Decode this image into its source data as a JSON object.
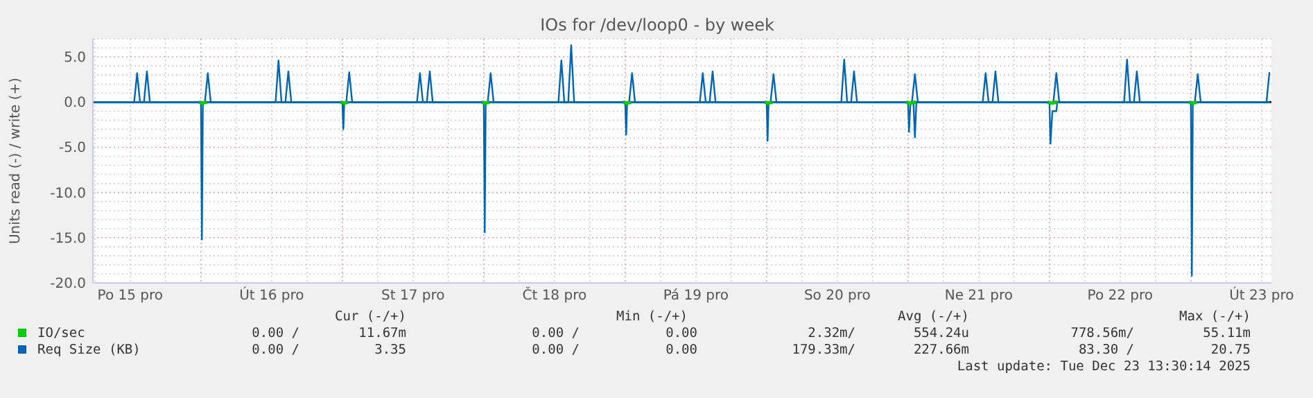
{
  "chart_data": {
    "type": "line",
    "title": "IOs for /dev/loop0 - by week",
    "ylabel": "Units read (-) / write (+)",
    "xlim": [
      "2025-12-15T05:40",
      "2025-12-23T13:40"
    ],
    "xticks": [
      {
        "value": "2025-12-15T06:00",
        "label": null
      },
      {
        "value": "2025-12-15T12:00",
        "label": "Po 15 pro"
      },
      {
        "value": "2025-12-15T18:00",
        "label": null
      },
      {
        "value": "2025-12-16T00:00",
        "label": null
      },
      {
        "value": "2025-12-16T06:00",
        "label": null
      },
      {
        "value": "2025-12-16T12:00",
        "label": "Út 16 pro"
      },
      {
        "value": "2025-12-16T18:00",
        "label": null
      },
      {
        "value": "2025-12-17T00:00",
        "label": null
      },
      {
        "value": "2025-12-17T06:00",
        "label": null
      },
      {
        "value": "2025-12-17T12:00",
        "label": "St 17 pro"
      },
      {
        "value": "2025-12-17T18:00",
        "label": null
      },
      {
        "value": "2025-12-18T00:00",
        "label": null
      },
      {
        "value": "2025-12-18T06:00",
        "label": null
      },
      {
        "value": "2025-12-18T12:00",
        "label": "Čt 18 pro"
      },
      {
        "value": "2025-12-18T18:00",
        "label": null
      },
      {
        "value": "2025-12-19T00:00",
        "label": null
      },
      {
        "value": "2025-12-19T06:00",
        "label": null
      },
      {
        "value": "2025-12-19T12:00",
        "label": "Pá 19 pro"
      },
      {
        "value": "2025-12-19T18:00",
        "label": null
      },
      {
        "value": "2025-12-20T00:00",
        "label": null
      },
      {
        "value": "2025-12-20T06:00",
        "label": null
      },
      {
        "value": "2025-12-20T12:00",
        "label": "So 20 pro"
      },
      {
        "value": "2025-12-20T18:00",
        "label": null
      },
      {
        "value": "2025-12-21T00:00",
        "label": null
      },
      {
        "value": "2025-12-21T06:00",
        "label": null
      },
      {
        "value": "2025-12-21T12:00",
        "label": "Ne 21 pro"
      },
      {
        "value": "2025-12-21T18:00",
        "label": null
      },
      {
        "value": "2025-12-22T00:00",
        "label": null
      },
      {
        "value": "2025-12-22T06:00",
        "label": null
      },
      {
        "value": "2025-12-22T12:00",
        "label": "Po 22 pro"
      },
      {
        "value": "2025-12-22T18:00",
        "label": null
      },
      {
        "value": "2025-12-23T00:00",
        "label": null
      },
      {
        "value": "2025-12-23T06:00",
        "label": null
      },
      {
        "value": "2025-12-23T12:00",
        "label": "Út 23 pro"
      }
    ],
    "ylim": [
      -20,
      7
    ],
    "yticks": [
      {
        "value": -20,
        "label": "-20.0"
      },
      {
        "value": -19,
        "label": null
      },
      {
        "value": -18,
        "label": null
      },
      {
        "value": -17,
        "label": null
      },
      {
        "value": -16,
        "label": null
      },
      {
        "value": -15,
        "label": "-15.0"
      },
      {
        "value": -14,
        "label": null
      },
      {
        "value": -13,
        "label": null
      },
      {
        "value": -12,
        "label": null
      },
      {
        "value": -11,
        "label": null
      },
      {
        "value": -10,
        "label": "-10.0"
      },
      {
        "value": -9,
        "label": null
      },
      {
        "value": -8,
        "label": null
      },
      {
        "value": -7,
        "label": null
      },
      {
        "value": -6,
        "label": null
      },
      {
        "value": -5,
        "label": "-5.0"
      },
      {
        "value": -4,
        "label": null
      },
      {
        "value": -3,
        "label": null
      },
      {
        "value": -2,
        "label": null
      },
      {
        "value": -1,
        "label": null
      },
      {
        "value": 0,
        "label": "0.0"
      },
      {
        "value": 1,
        "label": null
      },
      {
        "value": 2,
        "label": null
      },
      {
        "value": 3,
        "label": null
      },
      {
        "value": 4,
        "label": null
      },
      {
        "value": 5,
        "label": "5.0"
      },
      {
        "value": 6,
        "label": null
      },
      {
        "value": 7,
        "label": null
      }
    ],
    "grid": true,
    "legend": "bottom",
    "ref_lines": [
      {
        "axis": "y",
        "value": 0,
        "color": "#000000"
      }
    ],
    "series": [
      {
        "name": "IO/sec",
        "color": "#00cc00",
        "x": [
          "2025-12-15T23:40",
          "2025-12-16T00:20",
          "2025-12-16T01:00",
          "2025-12-16T03:00",
          "2025-12-16T23:40",
          "2025-12-17T00:20",
          "2025-12-17T01:00",
          "2025-12-17T03:00",
          "2025-12-17T23:40",
          "2025-12-18T00:20",
          "2025-12-18T01:00",
          "2025-12-18T03:00",
          "2025-12-18T23:40",
          "2025-12-19T00:20",
          "2025-12-19T01:00",
          "2025-12-19T03:00",
          "2025-12-19T23:40",
          "2025-12-20T00:20",
          "2025-12-20T01:00",
          "2025-12-20T03:00",
          "2025-12-20T23:40",
          "2025-12-21T00:20",
          "2025-12-21T01:20",
          "2025-12-21T03:00",
          "2025-12-21T23:40",
          "2025-12-22T00:20",
          "2025-12-22T01:20",
          "2025-12-22T03:00",
          "2025-12-22T23:40",
          "2025-12-23T00:20",
          "2025-12-23T01:00"
        ],
        "values": [
          0,
          -0.1,
          0,
          null,
          0,
          -0.1,
          0,
          null,
          0,
          -0.1,
          0,
          null,
          0,
          -0.1,
          0,
          null,
          0,
          -0.1,
          0,
          null,
          0,
          -0.1,
          0,
          null,
          0,
          -0.1,
          0,
          null,
          0,
          -0.1,
          0
        ]
      },
      {
        "name": "Req Size (KB)",
        "color": "#0066b3",
        "x": [
          "2025-12-15T05:40",
          "2025-12-15T12:40",
          "2025-12-15T13:10",
          "2025-12-15T13:40",
          "2025-12-15T14:20",
          "2025-12-15T14:50",
          "2025-12-15T15:20",
          "2025-12-16T00:40",
          "2025-12-16T01:10",
          "2025-12-16T01:40",
          "2025-12-16T12:40",
          "2025-12-16T13:10",
          "2025-12-16T13:40",
          "2025-12-16T14:20",
          "2025-12-16T14:50",
          "2025-12-16T15:20",
          "2025-12-17T00:40",
          "2025-12-17T01:10",
          "2025-12-17T01:40",
          "2025-12-17T12:40",
          "2025-12-17T13:10",
          "2025-12-17T13:40",
          "2025-12-17T14:20",
          "2025-12-17T14:50",
          "2025-12-17T15:20",
          "2025-12-18T00:40",
          "2025-12-18T01:10",
          "2025-12-18T01:40",
          "2025-12-18T12:40",
          "2025-12-18T13:10",
          "2025-12-18T13:40",
          "2025-12-18T14:20",
          "2025-12-18T14:50",
          "2025-12-18T15:20",
          "2025-12-19T00:40",
          "2025-12-19T01:10",
          "2025-12-19T01:40",
          "2025-12-19T12:40",
          "2025-12-19T13:10",
          "2025-12-19T13:40",
          "2025-12-19T14:20",
          "2025-12-19T14:50",
          "2025-12-19T15:20",
          "2025-12-20T00:40",
          "2025-12-20T01:10",
          "2025-12-20T01:40",
          "2025-12-20T12:40",
          "2025-12-20T13:10",
          "2025-12-20T13:40",
          "2025-12-20T14:20",
          "2025-12-20T14:50",
          "2025-12-20T15:20",
          "2025-12-21T00:40",
          "2025-12-21T01:10",
          "2025-12-21T01:40",
          "2025-12-21T12:40",
          "2025-12-21T13:10",
          "2025-12-21T13:40",
          "2025-12-21T14:20",
          "2025-12-21T14:50",
          "2025-12-21T15:20",
          "2025-12-22T00:40",
          "2025-12-22T01:10",
          "2025-12-22T01:40",
          "2025-12-22T12:40",
          "2025-12-22T13:10",
          "2025-12-22T13:40",
          "2025-12-22T14:20",
          "2025-12-22T14:50",
          "2025-12-22T15:20",
          "2025-12-23T00:40",
          "2025-12-23T01:10",
          "2025-12-23T01:40",
          "2025-12-23T12:50",
          "2025-12-23T13:20"
        ],
        "values": [
          0,
          0,
          3.2,
          0,
          0,
          3.4,
          0,
          0,
          3.2,
          0,
          0,
          4.6,
          0,
          0,
          3.4,
          0,
          0,
          3.3,
          0,
          0,
          3.2,
          0,
          0,
          3.4,
          0,
          0,
          3.2,
          0,
          0,
          4.6,
          0,
          0,
          6.3,
          0,
          0,
          3.2,
          0,
          0,
          3.2,
          0,
          0,
          3.4,
          0,
          0,
          3.1,
          0,
          0,
          4.7,
          0,
          0,
          3.4,
          0,
          0,
          3.1,
          0,
          0,
          3.2,
          0,
          0,
          3.4,
          0,
          0,
          3.2,
          0,
          0,
          4.7,
          0,
          0,
          3.4,
          0,
          0,
          3.1,
          0,
          0,
          3.3
        ]
      },
      {
        "color": "#0066b3",
        "x": [
          "2025-12-15T05:40",
          "2025-12-16T00:00",
          "2025-12-16T00:10",
          "2025-12-16T00:20",
          "2025-12-17T00:00",
          "2025-12-17T00:10",
          "2025-12-17T00:20",
          "2025-12-18T00:00",
          "2025-12-18T00:10",
          "2025-12-18T00:20",
          "2025-12-19T00:00",
          "2025-12-19T00:10",
          "2025-12-19T00:20",
          "2025-12-20T00:00",
          "2025-12-20T00:10",
          "2025-12-20T00:20",
          "2025-12-21T00:00",
          "2025-12-21T00:10",
          "2025-12-21T00:25",
          "2025-12-21T00:55",
          "2025-12-21T01:10",
          "2025-12-21T01:25",
          "2025-12-22T00:00",
          "2025-12-22T00:10",
          "2025-12-22T00:30",
          "2025-12-22T01:10",
          "2025-12-22T01:20",
          "2025-12-23T00:00",
          "2025-12-23T00:10",
          "2025-12-23T00:20",
          "2025-12-23T13:20"
        ],
        "values": [
          0,
          0,
          -15.2,
          0,
          0,
          -3.0,
          0,
          0,
          -14.4,
          0,
          0,
          -3.6,
          0,
          0,
          -4.3,
          0,
          0,
          -3.3,
          0,
          0,
          -3.9,
          0,
          0,
          -4.6,
          -1.0,
          -1.0,
          0,
          0,
          -19.2,
          0,
          0
        ]
      }
    ],
    "annotations": [
      "Cur (-/+)",
      "Min (-/+)",
      "Avg (-/+)",
      "Max (-/+)",
      "0.00 /",
      "11.67m",
      "0.00 /",
      "0.00",
      "2.32m/",
      "554.24u",
      "778.56m/",
      "55.11m",
      "0.00 /",
      "3.35",
      "0.00 /",
      "0.00",
      "179.33m/",
      "227.66m",
      "83.30 /",
      "20.75",
      "Last update: Tue Dec 23 13:30:14 2025"
    ]
  }
}
